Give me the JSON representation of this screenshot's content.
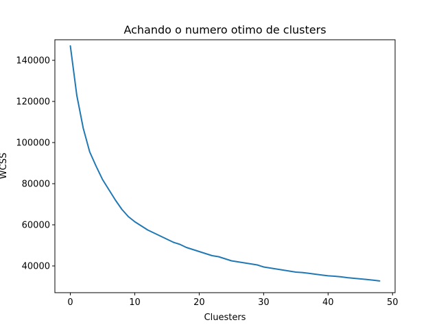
{
  "chart_data": {
    "type": "line",
    "title": "Achando o numero otimo de clusters",
    "xlabel": "Cluesters",
    "ylabel": "WCSS",
    "xlim": [
      -2.4,
      50.4
    ],
    "ylim": [
      27000,
      150000
    ],
    "xticks": [
      0,
      10,
      20,
      30,
      40,
      50
    ],
    "yticks": [
      40000,
      60000,
      80000,
      100000,
      120000,
      140000
    ],
    "grid": false,
    "series": [
      {
        "color": "#1f77b4",
        "x": [
          0,
          1,
          2,
          3,
          4,
          5,
          6,
          7,
          8,
          9,
          10,
          11,
          12,
          13,
          14,
          15,
          16,
          17,
          18,
          19,
          20,
          21,
          22,
          23,
          24,
          25,
          26,
          27,
          28,
          29,
          30,
          31,
          32,
          33,
          34,
          35,
          36,
          37,
          38,
          39,
          40,
          41,
          42,
          43,
          44,
          45,
          46,
          47,
          48
        ],
        "values": [
          147000,
          123000,
          107000,
          95500,
          88500,
          82000,
          77000,
          72000,
          67500,
          64000,
          61500,
          59500,
          57500,
          56000,
          54500,
          53000,
          51500,
          50500,
          49000,
          48000,
          47000,
          46000,
          45000,
          44500,
          43500,
          42500,
          42000,
          41500,
          41000,
          40500,
          39500,
          39000,
          38500,
          38000,
          37500,
          37000,
          36800,
          36400,
          36000,
          35600,
          35200,
          35000,
          34700,
          34300,
          34000,
          33700,
          33400,
          33100,
          32700
        ]
      }
    ]
  }
}
